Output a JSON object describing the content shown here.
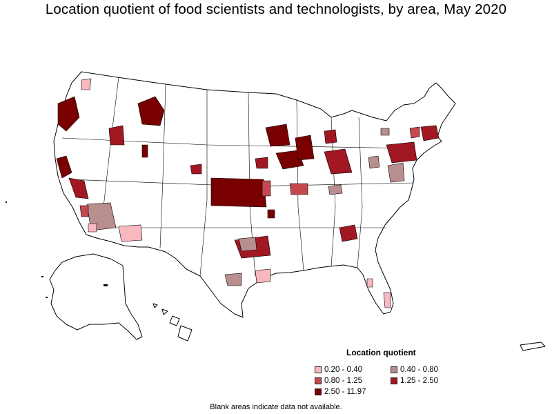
{
  "title": "Location quotient of food scientists and technologists, by area, May 2020",
  "legend": {
    "title": "Location quotient",
    "items": [
      {
        "label": "0.20 - 0.40",
        "color": "#f7b8c0"
      },
      {
        "label": "0.40 - 0.80",
        "color": "#b98e8e"
      },
      {
        "label": "0.80 - 1.25",
        "color": "#c4484e"
      },
      {
        "label": "1.25 - 2.50",
        "color": "#a11722"
      },
      {
        "label": "2.50 - 11.97",
        "color": "#7a0000"
      }
    ]
  },
  "footnote": "Blank areas indicate data not available.",
  "colors": {
    "outline": "#000000",
    "blank": "#ffffff"
  }
}
